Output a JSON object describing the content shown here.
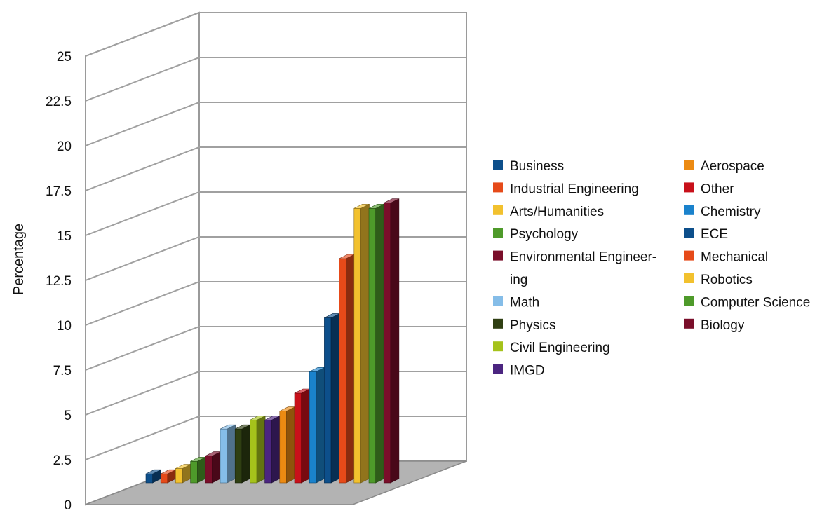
{
  "chart_data": {
    "type": "bar",
    "variant": "3d-column",
    "title": "",
    "xlabel": "",
    "ylabel": "Percentage",
    "ylim": [
      0,
      25
    ],
    "y_ticks": [
      "0",
      "2.5",
      "5",
      "7.5",
      "10",
      "12.5",
      "15",
      "17.5",
      "20",
      "22.5",
      "25"
    ],
    "grid": true,
    "legend_position": "right",
    "categories": [
      "Business",
      "Industrial Engineering",
      "Arts/Humanities",
      "Psychology",
      "Environmental Engineering",
      "Math",
      "Physics",
      "Civil Engineering",
      "IMGD",
      "Aerospace",
      "Other",
      "Chemistry",
      "ECE",
      "Mechanical",
      "Robotics",
      "Computer Science",
      "Biology"
    ],
    "values": [
      0.5,
      0.5,
      0.8,
      1.2,
      1.5,
      3.0,
      3.0,
      3.5,
      3.5,
      4.0,
      5.0,
      6.2,
      9.2,
      12.5,
      15.3,
      15.3,
      15.6
    ],
    "colors": [
      "#0d4f8b",
      "#e64a19",
      "#f2c12e",
      "#4e9a2a",
      "#7a0e2a",
      "#85bde8",
      "#2f3f12",
      "#a5c21b",
      "#4b2580",
      "#ec8a12",
      "#c8101a",
      "#1a82cc",
      "#0d4f8b",
      "#e64a19",
      "#f2c12e",
      "#4e9a2a",
      "#7a0e2a"
    ]
  },
  "legend_left": [
    {
      "label_lines": [
        "Business"
      ],
      "color": "#0d4f8b"
    },
    {
      "label_lines": [
        "Industrial Engineering"
      ],
      "color": "#e64a19"
    },
    {
      "label_lines": [
        "Arts/Humanities"
      ],
      "color": "#f2c12e"
    },
    {
      "label_lines": [
        "Psychology"
      ],
      "color": "#4e9a2a"
    },
    {
      "label_lines": [
        "Environmental Engineer-",
        "ing"
      ],
      "color": "#7a0e2a"
    },
    {
      "label_lines": [
        "Math"
      ],
      "color": "#85bde8"
    },
    {
      "label_lines": [
        "Physics"
      ],
      "color": "#2f3f12"
    },
    {
      "label_lines": [
        "Civil Engineering"
      ],
      "color": "#a5c21b"
    },
    {
      "label_lines": [
        "IMGD"
      ],
      "color": "#4b2580"
    }
  ],
  "legend_right": [
    {
      "label_lines": [
        "Aerospace"
      ],
      "color": "#ec8a12"
    },
    {
      "label_lines": [
        "Other"
      ],
      "color": "#c8101a"
    },
    {
      "label_lines": [
        "Chemistry"
      ],
      "color": "#1a82cc"
    },
    {
      "label_lines": [
        "ECE"
      ],
      "color": "#0d4f8b"
    },
    {
      "label_lines": [
        "Mechanical"
      ],
      "color": "#e64a19"
    },
    {
      "label_lines": [
        "Robotics"
      ],
      "color": "#f2c12e"
    },
    {
      "label_lines": [
        "Computer Science"
      ],
      "color": "#4e9a2a"
    },
    {
      "label_lines": [
        "Biology"
      ],
      "color": "#7a0e2a"
    }
  ]
}
